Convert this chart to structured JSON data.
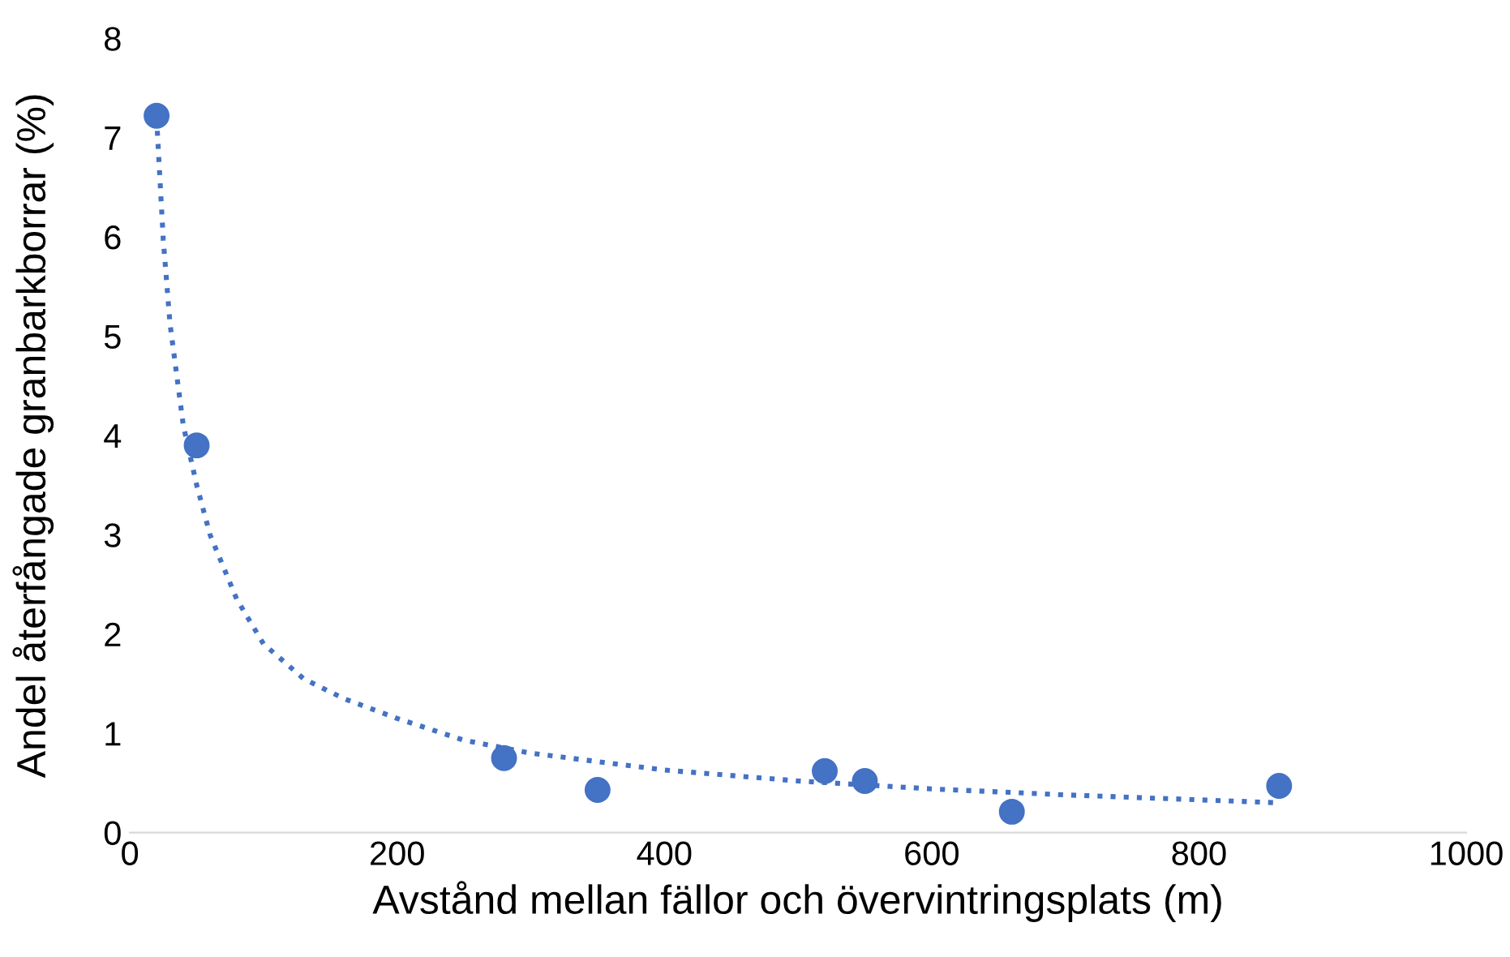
{
  "chart_data": {
    "type": "scatter",
    "xlabel": "Avstånd mellan fällor och övervintringsplats (m)",
    "ylabel": "Andel återfångade granbarkborrar (%)",
    "xlim": [
      0,
      1000
    ],
    "xticks": [
      0,
      200,
      400,
      600,
      800,
      1000
    ],
    "ylim": [
      0,
      8
    ],
    "yticks": [
      0,
      1,
      2,
      3,
      4,
      5,
      6,
      7,
      8
    ],
    "grid": false,
    "legend": false,
    "series": [
      {
        "color": "#4472c4",
        "marker": "circle",
        "x": [
          20,
          50,
          280,
          350,
          520,
          550,
          660,
          860
        ],
        "values": [
          7.22,
          3.9,
          0.75,
          0.43,
          0.62,
          0.52,
          0.21,
          0.47
        ]
      },
      {
        "type": "line",
        "color": "#4472c4",
        "marker": "none",
        "line_style": "dotted",
        "x": [
          20,
          25,
          30,
          40,
          50,
          60,
          80,
          100,
          130,
          160,
          200,
          250,
          300,
          400,
          500,
          600,
          700,
          800,
          860
        ],
        "values": [
          7.2,
          5.97,
          5.13,
          4.1,
          3.5,
          3.0,
          2.35,
          1.9,
          1.55,
          1.35,
          1.15,
          0.93,
          0.8,
          0.63,
          0.52,
          0.44,
          0.38,
          0.33,
          0.3
        ]
      }
    ]
  }
}
